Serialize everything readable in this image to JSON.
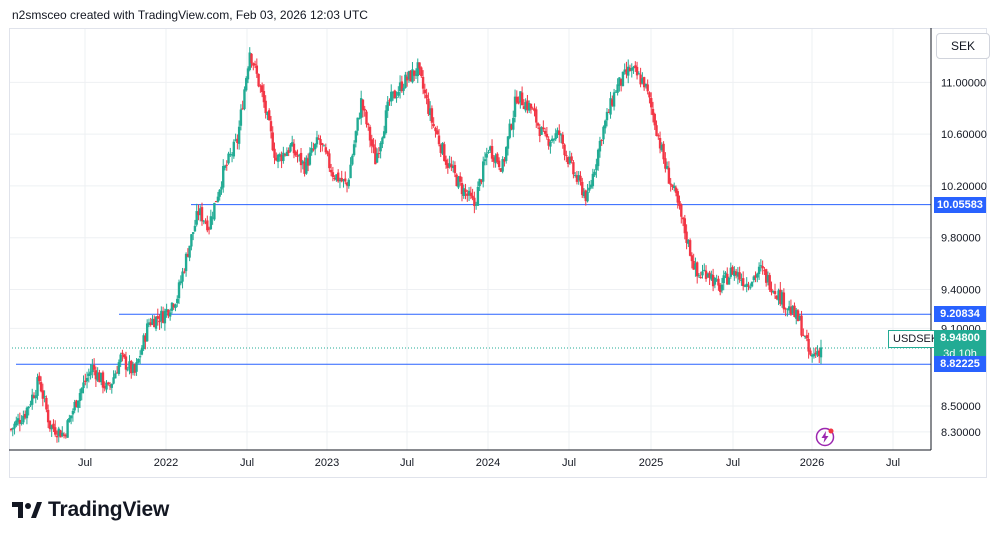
{
  "header": {
    "credit": "n2smsceo created with TradingView.com, Feb 03, 2026 12:03 UTC"
  },
  "currency": "SEK",
  "symbol": "USDSEK",
  "current_price": "8.94800",
  "countdown": "3d 10h",
  "brand": "TradingView",
  "colors": {
    "up": "#22ab94",
    "down": "#f23645",
    "level_line": "#2962ff",
    "grid": "#eef0f3",
    "axis_text": "#131722"
  },
  "chart_data": {
    "type": "candlestick",
    "timeframe": "weekly",
    "x_ticks": [
      "Jul",
      "2022",
      "Jul",
      "2023",
      "Jul",
      "2024",
      "Jul",
      "2025",
      "Jul",
      "2026",
      "Jul"
    ],
    "y_ticks": [
      "11.00000",
      "10.60000",
      "10.20000",
      "9.80000",
      "9.40000",
      "9.10000",
      "8.50000",
      "8.30000"
    ],
    "ylim": [
      8.16,
      11.42
    ],
    "horizontal_levels": [
      {
        "value": 10.05583,
        "label": "10.05583"
      },
      {
        "value": 9.20834,
        "label": "9.20834"
      },
      {
        "value": 8.82225,
        "label": "8.82225"
      }
    ],
    "close_path": [
      [
        0,
        8.32
      ],
      [
        8,
        8.45
      ],
      [
        16,
        8.7
      ],
      [
        22,
        8.35
      ],
      [
        30,
        8.28
      ],
      [
        38,
        8.58
      ],
      [
        46,
        8.8
      ],
      [
        55,
        8.62
      ],
      [
        62,
        8.87
      ],
      [
        70,
        8.75
      ],
      [
        78,
        9.15
      ],
      [
        86,
        9.2
      ],
      [
        94,
        9.35
      ],
      [
        100,
        9.7
      ],
      [
        106,
        10.0
      ],
      [
        112,
        9.9
      ],
      [
        120,
        10.3
      ],
      [
        128,
        10.55
      ],
      [
        135,
        11.25
      ],
      [
        142,
        10.9
      ],
      [
        150,
        10.4
      ],
      [
        158,
        10.5
      ],
      [
        166,
        10.35
      ],
      [
        174,
        10.55
      ],
      [
        182,
        10.3
      ],
      [
        190,
        10.2
      ],
      [
        198,
        10.85
      ],
      [
        206,
        10.4
      ],
      [
        214,
        10.85
      ],
      [
        222,
        11.0
      ],
      [
        230,
        11.1
      ],
      [
        238,
        10.7
      ],
      [
        246,
        10.4
      ],
      [
        254,
        10.2
      ],
      [
        262,
        10.05
      ],
      [
        270,
        10.5
      ],
      [
        278,
        10.35
      ],
      [
        286,
        10.9
      ],
      [
        294,
        10.8
      ],
      [
        302,
        10.55
      ],
      [
        310,
        10.6
      ],
      [
        318,
        10.3
      ],
      [
        326,
        10.1
      ],
      [
        334,
        10.6
      ],
      [
        342,
        10.95
      ],
      [
        350,
        11.1
      ],
      [
        358,
        11.0
      ],
      [
        364,
        10.7
      ],
      [
        370,
        10.35
      ],
      [
        376,
        10.1
      ],
      [
        382,
        9.8
      ],
      [
        388,
        9.5
      ],
      [
        394,
        9.55
      ],
      [
        400,
        9.4
      ],
      [
        408,
        9.55
      ],
      [
        416,
        9.45
      ],
      [
        424,
        9.55
      ],
      [
        432,
        9.4
      ],
      [
        440,
        9.25
      ],
      [
        446,
        9.15
      ],
      [
        452,
        8.87
      ],
      [
        458,
        8.95
      ]
    ]
  }
}
